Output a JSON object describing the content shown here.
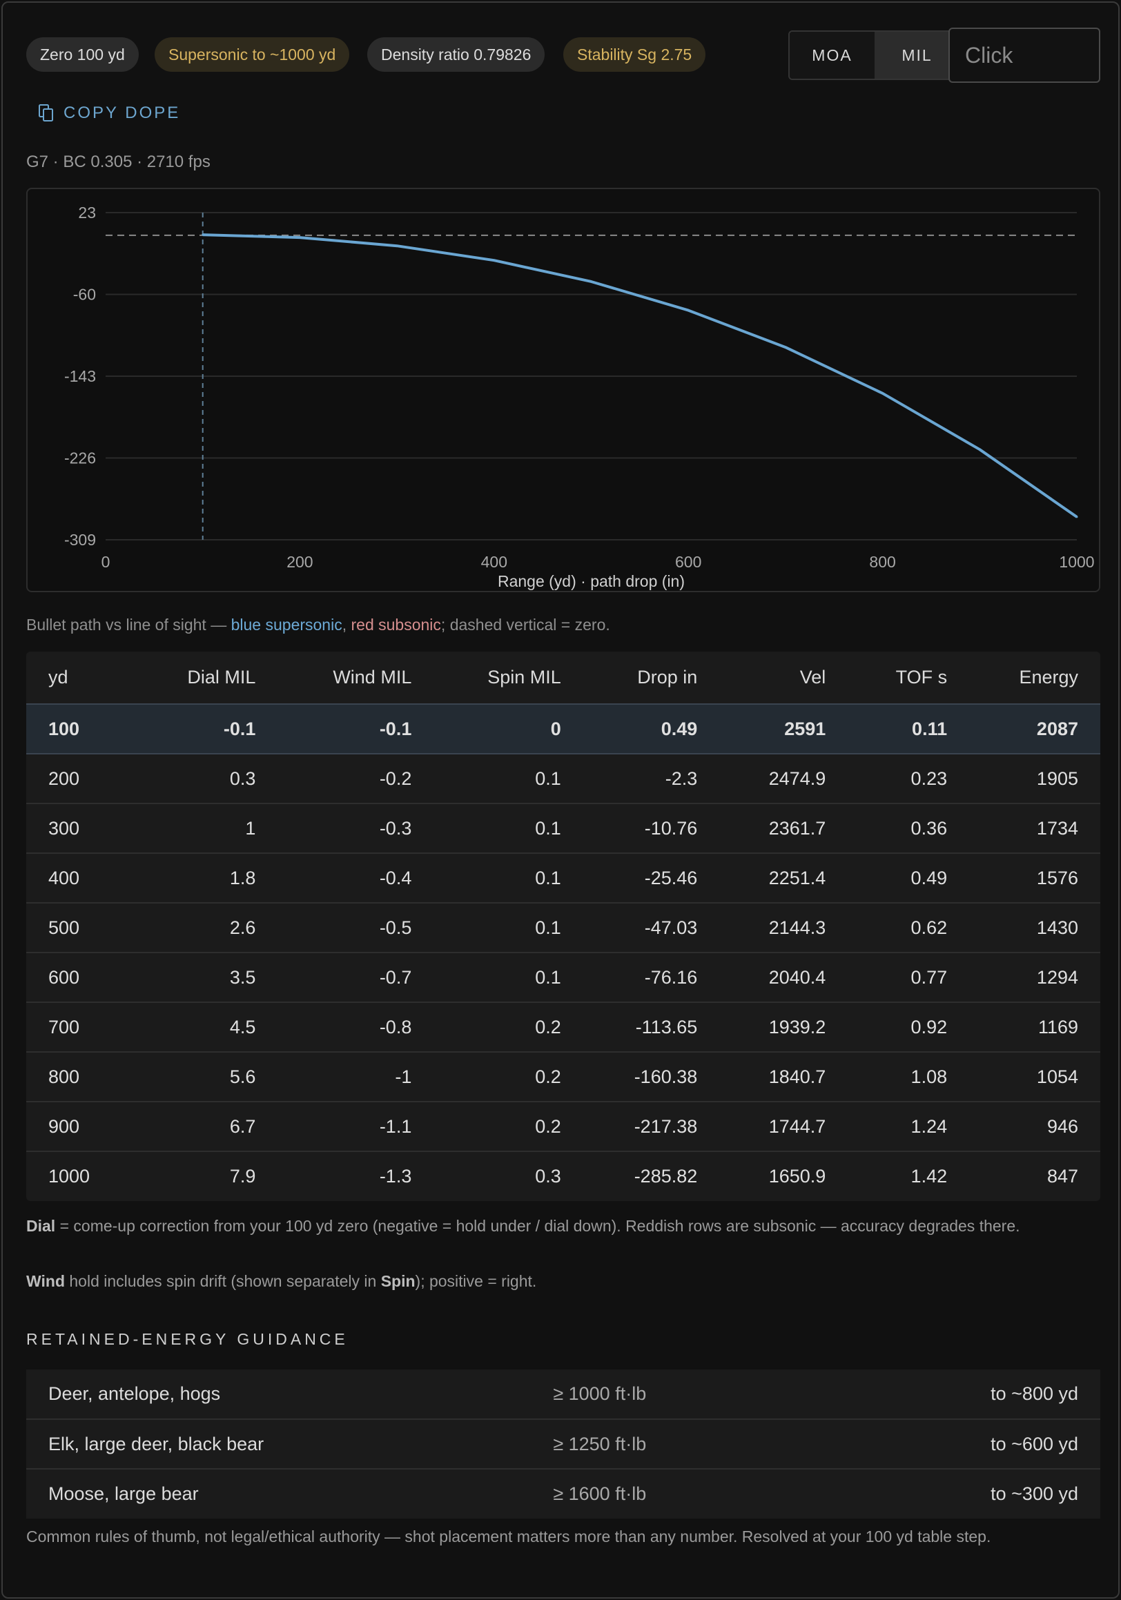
{
  "chips": [
    {
      "label": "Zero 100 yd",
      "tone": "grey"
    },
    {
      "label": "Supersonic to ~1000 yd",
      "tone": "gold"
    },
    {
      "label": "Density ratio 0.79826",
      "tone": "grey"
    },
    {
      "label": "Stability Sg 2.75",
      "tone": "gold"
    }
  ],
  "units": {
    "moa_label": "MOA",
    "mil_label": "MIL",
    "selected": "MIL"
  },
  "click_input": {
    "placeholder": "Click",
    "value": ""
  },
  "copy_button": {
    "label": "COPY DOPE",
    "icon": "copy-icon"
  },
  "subtitle": "G7 · BC 0.305 · 2710 fps",
  "chart_data": {
    "type": "line",
    "xlabel": "Range (yd) · path drop (in)",
    "x": [
      100,
      200,
      300,
      400,
      500,
      600,
      700,
      800,
      900,
      1000
    ],
    "series": [
      {
        "name": "",
        "values": [
          0.49,
          -2.3,
          -10.76,
          -25.46,
          -47.03,
          -76.16,
          -113.65,
          -160.38,
          -217.38,
          -285.82
        ]
      }
    ],
    "xlim": [
      0,
      1000
    ],
    "ylim": [
      -309,
      23
    ],
    "x_ticks": [
      "0",
      "200",
      "400",
      "600",
      "800",
      "1000"
    ],
    "y_ticks": [
      "23",
      "-60",
      "-143",
      "-226",
      "-309"
    ],
    "zero_range": 100,
    "line_of_sight": 0,
    "grid": true,
    "colors": {
      "supersonic": "#6aa6d2",
      "subsonic": "#d68f8f",
      "grid": "#2a2a2a",
      "dashed": "#8a8a8a"
    }
  },
  "legend_note": {
    "prefix": "Bullet path vs line of sight — ",
    "blue": "blue supersonic",
    "sep": ", ",
    "red": "red subsonic",
    "suffix": "; dashed vertical = zero."
  },
  "table": {
    "headers": [
      "yd",
      "Dial MIL",
      "Wind MIL",
      "Spin MIL",
      "Drop in",
      "Vel",
      "TOF s",
      "Energy"
    ],
    "rows": [
      [
        "100",
        "-0.1",
        "-0.1",
        "0",
        "0.49",
        "2591",
        "0.11",
        "2087"
      ],
      [
        "200",
        "0.3",
        "-0.2",
        "0.1",
        "-2.3",
        "2474.9",
        "0.23",
        "1905"
      ],
      [
        "300",
        "1",
        "-0.3",
        "0.1",
        "-10.76",
        "2361.7",
        "0.36",
        "1734"
      ],
      [
        "400",
        "1.8",
        "-0.4",
        "0.1",
        "-25.46",
        "2251.4",
        "0.49",
        "1576"
      ],
      [
        "500",
        "2.6",
        "-0.5",
        "0.1",
        "-47.03",
        "2144.3",
        "0.62",
        "1430"
      ],
      [
        "600",
        "3.5",
        "-0.7",
        "0.1",
        "-76.16",
        "2040.4",
        "0.77",
        "1294"
      ],
      [
        "700",
        "4.5",
        "-0.8",
        "0.2",
        "-113.65",
        "1939.2",
        "0.92",
        "1169"
      ],
      [
        "800",
        "5.6",
        "-1",
        "0.2",
        "-160.38",
        "1840.7",
        "1.08",
        "1054"
      ],
      [
        "900",
        "6.7",
        "-1.1",
        "0.2",
        "-217.38",
        "1744.7",
        "1.24",
        "946"
      ],
      [
        "1000",
        "7.9",
        "-1.3",
        "0.3",
        "-285.82",
        "1650.9",
        "1.42",
        "847"
      ]
    ],
    "highlight_row": 0
  },
  "dial_note": {
    "bold": "Dial",
    "text": " = come-up correction from your 100 yd zero (negative = hold under / dial down). Reddish rows are subsonic — accuracy degrades there."
  },
  "wind_note": {
    "bold1": "Wind",
    "text1": " hold includes spin drift (shown separately in ",
    "bold2": "Spin",
    "text2": "); positive = right."
  },
  "energy_section": {
    "title": "RETAINED-ENERGY GUIDANCE",
    "rows": [
      {
        "game": "Deer, antelope, hogs",
        "requirement": "≥ 1000 ft·lb",
        "reach": "to ~800 yd"
      },
      {
        "game": "Elk, large deer, black bear",
        "requirement": "≥ 1250 ft·lb",
        "reach": "to ~600 yd"
      },
      {
        "game": "Moose, large bear",
        "requirement": "≥ 1600 ft·lb",
        "reach": "to ~300 yd"
      }
    ],
    "footnote": "Common rules of thumb, not legal/ethical authority — shot placement matters more than any number. Resolved at your 100 yd table step."
  }
}
